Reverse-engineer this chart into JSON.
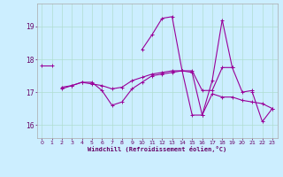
{
  "xlabel": "Windchill (Refroidissement éolien,°C)",
  "background_color": "#cceeff",
  "grid_color": "#b0ddd0",
  "line_color": "#990099",
  "x": [
    0,
    1,
    2,
    3,
    4,
    5,
    6,
    7,
    8,
    9,
    10,
    11,
    12,
    13,
    14,
    15,
    16,
    17,
    18,
    19,
    20,
    21,
    22,
    23
  ],
  "line1": [
    17.8,
    17.8,
    null,
    null,
    null,
    null,
    null,
    null,
    null,
    null,
    null,
    null,
    null,
    null,
    null,
    null,
    null,
    null,
    null,
    null,
    null,
    null,
    null,
    null
  ],
  "line2": [
    null,
    null,
    17.15,
    17.2,
    17.3,
    17.25,
    17.2,
    17.1,
    17.15,
    17.35,
    17.45,
    17.55,
    17.6,
    17.65,
    17.65,
    17.65,
    17.05,
    17.05,
    17.75,
    17.75,
    17.0,
    17.05,
    null,
    null
  ],
  "line3": [
    null,
    null,
    17.1,
    17.2,
    17.3,
    17.3,
    17.05,
    16.6,
    16.7,
    17.1,
    17.3,
    17.5,
    17.55,
    17.6,
    17.65,
    16.3,
    16.3,
    16.95,
    16.85,
    16.85,
    16.75,
    16.7,
    16.65,
    16.5
  ],
  "line4": [
    null,
    null,
    null,
    null,
    null,
    null,
    null,
    null,
    null,
    null,
    18.3,
    18.75,
    19.25,
    19.3,
    17.65,
    17.6,
    16.3,
    17.35,
    19.2,
    17.75,
    null,
    17.0,
    16.1,
    16.5
  ],
  "ylim": [
    15.6,
    19.7
  ],
  "yticks": [
    16,
    17,
    18,
    19
  ],
  "xlim": [
    -0.5,
    23.5
  ],
  "figsize": [
    3.2,
    2.0
  ],
  "dpi": 100
}
